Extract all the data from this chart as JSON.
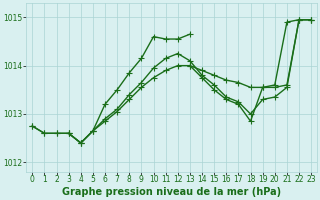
{
  "title": "Graphe pression niveau de la mer (hPa)",
  "xlabel_hours": [
    0,
    1,
    2,
    3,
    4,
    5,
    6,
    7,
    8,
    9,
    10,
    11,
    12,
    13,
    14,
    15,
    16,
    17,
    18,
    19,
    20,
    21,
    22,
    23
  ],
  "ylim": [
    1011.8,
    1015.3
  ],
  "yticks": [
    1012,
    1013,
    1014,
    1015
  ],
  "series": [
    {
      "x": [
        0,
        1,
        2,
        3,
        4,
        5,
        6,
        7,
        8,
        9,
        10,
        11,
        12,
        13,
        14,
        15,
        16,
        17,
        18,
        19,
        20,
        21,
        22,
        23
      ],
      "y": [
        1012.75,
        1012.6,
        1012.6,
        1012.6,
        1012.4,
        1012.65,
        1012.85,
        1013.05,
        1013.3,
        1013.55,
        1013.75,
        1013.9,
        1014.0,
        1014.0,
        1013.9,
        1013.8,
        1013.7,
        1013.65,
        1013.55,
        1013.55,
        1013.55,
        1013.6,
        1014.95,
        1014.95
      ]
    },
    {
      "x": [
        0,
        1,
        2,
        3,
        4,
        5,
        6,
        7,
        8,
        9,
        10,
        11,
        12,
        13,
        14,
        15,
        16,
        17,
        18,
        19,
        20,
        21,
        22,
        23
      ],
      "y": [
        1012.75,
        1012.6,
        1012.6,
        1012.6,
        1012.4,
        1012.65,
        1012.9,
        1013.1,
        1013.4,
        1013.65,
        1013.95,
        1014.15,
        1014.25,
        1014.1,
        1013.8,
        1013.6,
        1013.35,
        1013.25,
        1013.0,
        1013.3,
        1013.35,
        1013.55,
        1014.95,
        1014.95
      ]
    },
    {
      "x": [
        3,
        4,
        5,
        6,
        7,
        8,
        9,
        10,
        11,
        12,
        13
      ],
      "y": [
        1012.6,
        1012.4,
        1012.65,
        1013.2,
        1013.5,
        1013.85,
        1014.15,
        1014.6,
        1014.55,
        1014.55,
        1014.65
      ]
    },
    {
      "x": [
        13,
        14,
        15,
        16,
        17,
        18,
        19,
        20,
        21,
        22,
        23
      ],
      "y": [
        1014.0,
        1013.75,
        1013.5,
        1013.3,
        1013.2,
        1012.85,
        1013.55,
        1013.6,
        1014.9,
        1014.95,
        1014.95
      ]
    }
  ],
  "line_color": "#1a6e1a",
  "marker": "+",
  "markersize": 4,
  "linewidth": 1.0,
  "bg_color": "#d9f0f0",
  "grid_color": "#aad4d4",
  "tick_label_color": "#1a6e1a",
  "title_color": "#1a6e1a",
  "title_fontsize": 7,
  "tick_fontsize": 5.5
}
